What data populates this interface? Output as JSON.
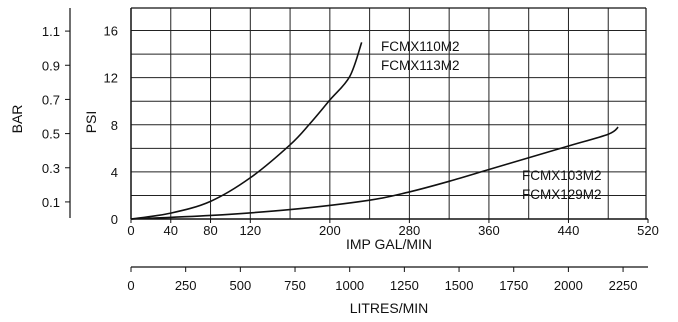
{
  "chart_data": {
    "type": "line",
    "x": {
      "label": "IMP GAL/MIN",
      "range": [
        0,
        520
      ],
      "ticks": [
        0,
        40,
        80,
        120,
        200,
        280,
        360,
        440,
        520
      ],
      "tick_labels": [
        "0",
        "40",
        "80",
        "120",
        "200",
        "280",
        "360",
        "440",
        "520"
      ]
    },
    "x_secondary": {
      "label": "LITRES/MIN",
      "range": [
        0,
        2364
      ],
      "ticks": [
        0,
        250,
        500,
        750,
        1000,
        1250,
        1500,
        1750,
        2000,
        2250
      ],
      "tick_labels": [
        "0",
        "250",
        "500",
        "750",
        "1000",
        "1250",
        "1500",
        "1750",
        "2000",
        "2250"
      ]
    },
    "y": {
      "label": "PSI",
      "range": [
        0,
        18
      ],
      "ticks": [
        0,
        4,
        8,
        12,
        16
      ],
      "tick_labels": [
        "0",
        "4",
        "8",
        "12",
        "16"
      ]
    },
    "y_secondary": {
      "label": "BAR",
      "ticks": [
        0.1,
        0.3,
        0.5,
        0.7,
        0.9,
        1.1
      ],
      "tick_labels": [
        "0.1",
        "0.3",
        "0.5",
        "0.7",
        "0.9",
        "1.1"
      ]
    },
    "grid": true,
    "series": [
      {
        "name": "FCMX110M2 / FCMX113M2",
        "labels": [
          "FCMX110M2",
          "FCMX113M2"
        ],
        "x": [
          0,
          40,
          80,
          120,
          160,
          180,
          200,
          220,
          232
        ],
        "y": [
          0,
          0.5,
          1.5,
          3.5,
          6.3,
          8.1,
          10.1,
          12.1,
          15.0
        ]
      },
      {
        "name": "FCMX103M2 / FCMX129M2",
        "labels": [
          "FCMX103M2",
          "FCMX129M2"
        ],
        "x": [
          0,
          80,
          160,
          240,
          280,
          320,
          360,
          400,
          440,
          480,
          490
        ],
        "y": [
          0,
          0.3,
          0.8,
          1.6,
          2.3,
          3.2,
          4.2,
          5.2,
          6.2,
          7.2,
          7.8
        ]
      }
    ]
  }
}
